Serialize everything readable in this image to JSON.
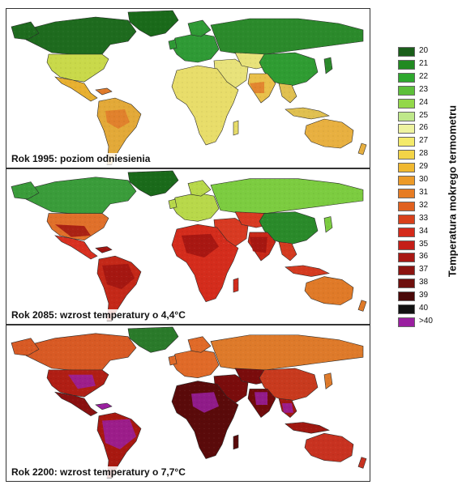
{
  "maps": [
    {
      "caption": "Rok 1995: poziom odniesienia",
      "colors": {
        "canada": "#1e6b1e",
        "greenland": "#1a6a1a",
        "usa": "#c9d94a",
        "mexico": "#e8b030",
        "southamerica": "#e3a938",
        "europe": "#2f9a35",
        "russia": "#2b8a2b",
        "africa": "#e8dd6a",
        "mideast": "#e8e27a",
        "india": "#e9c04a",
        "seasia": "#e0c050",
        "china": "#2f9c32",
        "australia": "#e8b040",
        "hot": "#e07a2a"
      }
    },
    {
      "caption": "Rok 2085: wzrost temperatury o 4,4°C",
      "colors": {
        "canada": "#3a9c3a",
        "greenland": "#1a6a1a",
        "usa": "#e0702a",
        "mexico": "#d83020",
        "southamerica": "#c42818",
        "europe": "#b8d84a",
        "russia": "#7ccc40",
        "africa": "#d42c1c",
        "mideast": "#d83a22",
        "india": "#c82818",
        "seasia": "#d43a20",
        "china": "#2a8a2a",
        "australia": "#e07a28",
        "hot": "#a01410"
      }
    },
    {
      "caption": "Rok 2200: wzrost temperatury o 7,7°C",
      "colors": {
        "canada": "#d85a24",
        "greenland": "#2a7a2a",
        "usa": "#b01e14",
        "mexico": "#8a1010",
        "southamerica": "#a81810",
        "europe": "#e06a28",
        "russia": "#de7a2a",
        "africa": "#5a0a0a",
        "mideast": "#7a0c0c",
        "india": "#700a0a",
        "seasia": "#a01810",
        "china": "#c83a1e",
        "australia": "#c83220",
        "hot": "#9a1fa0"
      }
    }
  ],
  "legend": {
    "title": "Temperatura mokrego termometru",
    "items": [
      {
        "label": "20",
        "color": "#1a5e1a"
      },
      {
        "label": "21",
        "color": "#218a21"
      },
      {
        "label": "22",
        "color": "#2ea82e"
      },
      {
        "label": "23",
        "color": "#5dbf3a"
      },
      {
        "label": "24",
        "color": "#93d84a"
      },
      {
        "label": "25",
        "color": "#bfe88a"
      },
      {
        "label": "26",
        "color": "#eef3a0"
      },
      {
        "label": "27",
        "color": "#f4ea6a"
      },
      {
        "label": "28",
        "color": "#f3d447"
      },
      {
        "label": "29",
        "color": "#f0b830"
      },
      {
        "label": "30",
        "color": "#ec9a28"
      },
      {
        "label": "31",
        "color": "#e67c24"
      },
      {
        "label": "32",
        "color": "#e0601f"
      },
      {
        "label": "33",
        "color": "#d8401a"
      },
      {
        "label": "34",
        "color": "#d42a1a"
      },
      {
        "label": "35",
        "color": "#c41e18"
      },
      {
        "label": "36",
        "color": "#a81814"
      },
      {
        "label": "37",
        "color": "#8c1410"
      },
      {
        "label": "38",
        "color": "#6e0f0d"
      },
      {
        "label": "39",
        "color": "#4a0808"
      },
      {
        "label": "40",
        "color": "#111111"
      },
      {
        "label": ">40",
        "color": "#9a1fa0"
      }
    ]
  }
}
